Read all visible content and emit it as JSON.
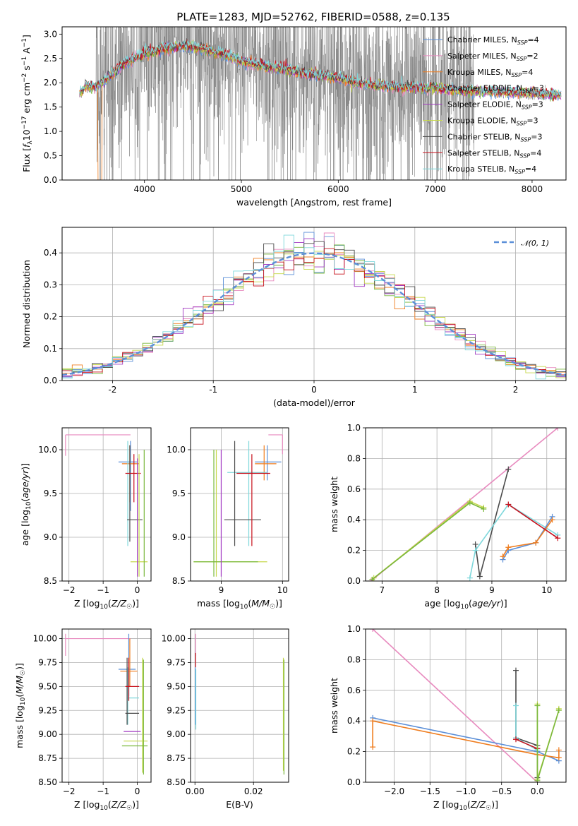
{
  "figure_title": "PLATE=1283, MJD=52762, FIBERID=0588, z=0.135",
  "series_colors": [
    "#5b8fd8",
    "#e88bbf",
    "#ef7d1f",
    "#7ab83c",
    "#a23bc2",
    "#c6d84c",
    "#4a4a4a",
    "#c8101c",
    "#7fd8dc"
  ],
  "chart_data": [
    {
      "id": "spectrum",
      "type": "line",
      "title": "PLATE=1283, MJD=52762, FIBERID=0588, z=0.135",
      "xlabel": "wavelength [Angstrom, rest frame]",
      "ylabel": "Flux [f_λ 10^-17 erg cm^-2 s^-1 A^-1]",
      "xlim": [
        3150,
        8350
      ],
      "ylim": [
        0,
        3.15
      ],
      "xticks": [
        4000,
        5000,
        6000,
        7000,
        8000
      ],
      "yticks": [
        0.0,
        0.5,
        1.0,
        1.5,
        2.0,
        2.5,
        3.0
      ],
      "ytick_labels": [
        "0.0",
        "0.5",
        "1.0",
        "1.5",
        "2.0",
        "2.5",
        "3.0"
      ],
      "grid": false,
      "legend_position": "upper-right",
      "data_color": "#808080",
      "continuum_x": [
        3330,
        3400,
        3500,
        3600,
        3700,
        3800,
        3900,
        4000,
        4200,
        4400,
        4600,
        4800,
        5000,
        5200,
        5400,
        5600,
        5800,
        6000,
        6200,
        6400,
        6600,
        6800,
        7000,
        7200,
        7400,
        7600,
        7800,
        8000,
        8300
      ],
      "continuum_y": [
        1.75,
        1.95,
        1.9,
        2.05,
        2.25,
        2.4,
        2.5,
        2.6,
        2.7,
        2.75,
        2.7,
        2.6,
        2.45,
        2.35,
        2.3,
        2.2,
        2.15,
        2.1,
        2.0,
        1.95,
        1.92,
        1.9,
        1.88,
        1.85,
        1.83,
        1.82,
        1.8,
        1.78,
        1.75
      ],
      "noise_range": [
        3500,
        7400
      ],
      "legend": [
        "Chabrier MILES, N_SSP=4",
        "Salpeter MILES, N_SSP=2",
        "Kroupa MILES, N_SSP=4",
        "Chabrier ELODIE, N_SSP=3",
        "Salpeter ELODIE, N_SSP=3",
        "Kroupa ELODIE, N_SSP=3",
        "Chabrier STELIB, N_SSP=3",
        "Salpeter STELIB, N_SSP=4",
        "Kroupa STELIB, N_SSP=4"
      ]
    },
    {
      "id": "residuals",
      "type": "line",
      "xlabel": "(data-model)/error",
      "ylabel": "Normed distribution",
      "xlim": [
        -2.5,
        2.5
      ],
      "ylim": [
        0,
        0.48
      ],
      "xticks": [
        -2,
        -1,
        0,
        1,
        2
      ],
      "yticks": [
        0.0,
        0.1,
        0.2,
        0.3,
        0.4
      ],
      "ytick_labels": [
        "0.0",
        "0.1",
        "0.2",
        "0.3",
        "0.4"
      ],
      "grid": true,
      "legend_position": "upper-right",
      "legend": [
        "𝒩(0, 1)"
      ],
      "gaussian_color": "#5b8fd8",
      "bin_width": 0.1
    },
    {
      "id": "age-vs-z",
      "type": "scatter",
      "xlabel": "Z [log10(Z/Z☉)]",
      "ylabel": "age  [log10(age/yr)]",
      "xlim": [
        -2.2,
        0.4
      ],
      "ylim": [
        8.5,
        10.25
      ],
      "xticks": [
        -2,
        -1,
        0
      ],
      "xtick_labels": [
        "−2",
        "−1",
        "0"
      ],
      "yticks": [
        8.5,
        9.0,
        9.5,
        10.0
      ],
      "ytick_labels": [
        "8.5",
        "9.0",
        "9.5",
        "10.0"
      ],
      "grid": true,
      "segments": [
        {
          "c": 1,
          "x1": -2.1,
          "x2": -0.2,
          "y1": 10.17,
          "y2": 10.17
        },
        {
          "c": 1,
          "x1": -2.1,
          "x2": -2.1,
          "y1": 9.93,
          "y2": 10.17
        },
        {
          "c": 0,
          "x1": -0.55,
          "x2": 0.0,
          "y1": 9.86,
          "y2": 9.86
        },
        {
          "c": 0,
          "x1": -0.2,
          "x2": -0.2,
          "y1": 9.3,
          "y2": 10.1
        },
        {
          "c": 2,
          "x1": -0.45,
          "x2": 0.05,
          "y1": 9.84,
          "y2": 9.84
        },
        {
          "c": 2,
          "x1": -0.22,
          "x2": -0.22,
          "y1": 9.4,
          "y2": 10.05
        },
        {
          "c": 8,
          "x1": -0.28,
          "x2": -0.28,
          "y1": 8.9,
          "y2": 10.1
        },
        {
          "c": 6,
          "x1": -0.22,
          "x2": -0.22,
          "y1": 8.95,
          "y2": 10.05
        },
        {
          "c": 6,
          "x1": -0.3,
          "x2": 0.15,
          "y1": 9.2,
          "y2": 9.2
        },
        {
          "c": 7,
          "x1": -0.35,
          "x2": 0.1,
          "y1": 9.73,
          "y2": 9.73
        },
        {
          "c": 7,
          "x1": -0.1,
          "x2": -0.1,
          "y1": 9.4,
          "y2": 9.95
        },
        {
          "c": 5,
          "x1": -0.2,
          "x2": 0.3,
          "y1": 8.72,
          "y2": 8.72
        },
        {
          "c": 5,
          "x1": 0.05,
          "x2": 0.05,
          "y1": 8.55,
          "y2": 9.95
        },
        {
          "c": 3,
          "x1": 0.2,
          "x2": 0.2,
          "y1": 8.55,
          "y2": 10.0
        },
        {
          "c": 4,
          "x1": 0.0,
          "x2": 0.0,
          "y1": 8.55,
          "y2": 9.9
        }
      ]
    },
    {
      "id": "age-vs-mass",
      "type": "scatter",
      "xlabel": "mass [log10(M/M☉)]",
      "ylabel": "",
      "xlim": [
        8.5,
        10.1
      ],
      "ylim": [
        8.5,
        10.25
      ],
      "xticks": [
        9,
        10
      ],
      "xtick_labels": [
        "9",
        "10"
      ],
      "yticks": [
        8.5,
        9.0,
        9.5,
        10.0
      ],
      "ytick_labels": [
        "8.5",
        "9.0",
        "9.5",
        "10.0"
      ],
      "grid": true,
      "segments": [
        {
          "c": 1,
          "x1": 9.77,
          "x2": 10.0,
          "y1": 10.17,
          "y2": 10.17
        },
        {
          "c": 1,
          "x1": 10.0,
          "x2": 10.0,
          "y1": 9.95,
          "y2": 10.17
        },
        {
          "c": 0,
          "x1": 9.55,
          "x2": 9.98,
          "y1": 9.86,
          "y2": 9.86
        },
        {
          "c": 0,
          "x1": 9.75,
          "x2": 9.75,
          "y1": 9.65,
          "y2": 10.05
        },
        {
          "c": 2,
          "x1": 9.55,
          "x2": 9.9,
          "y1": 9.84,
          "y2": 9.84
        },
        {
          "c": 2,
          "x1": 9.7,
          "x2": 9.7,
          "y1": 9.65,
          "y2": 10.05
        },
        {
          "c": 8,
          "x1": 9.1,
          "x2": 9.75,
          "y1": 9.74,
          "y2": 9.74
        },
        {
          "c": 8,
          "x1": 9.45,
          "x2": 9.45,
          "y1": 8.9,
          "y2": 10.1
        },
        {
          "c": 6,
          "x1": 9.05,
          "x2": 9.65,
          "y1": 9.2,
          "y2": 9.2
        },
        {
          "c": 6,
          "x1": 9.22,
          "x2": 9.22,
          "y1": 8.9,
          "y2": 10.1
        },
        {
          "c": 7,
          "x1": 9.25,
          "x2": 9.8,
          "y1": 9.73,
          "y2": 9.73
        },
        {
          "c": 7,
          "x1": 9.5,
          "x2": 9.5,
          "y1": 8.9,
          "y2": 9.95
        },
        {
          "c": 5,
          "x1": 8.55,
          "x2": 9.75,
          "y1": 8.72,
          "y2": 8.72
        },
        {
          "c": 5,
          "x1": 8.92,
          "x2": 8.92,
          "y1": 8.55,
          "y2": 10.0
        },
        {
          "c": 3,
          "x1": 8.55,
          "x2": 9.6,
          "y1": 8.72,
          "y2": 8.72
        },
        {
          "c": 3,
          "x1": 8.88,
          "x2": 8.88,
          "y1": 8.55,
          "y2": 10.0
        },
        {
          "c": 4,
          "x1": 9.0,
          "x2": 9.0,
          "y1": 8.55,
          "y2": 10.0
        }
      ]
    },
    {
      "id": "weight-vs-age",
      "type": "line",
      "xlabel": "age  [log10(age/yr)]",
      "ylabel": "mass weight",
      "xlim": [
        6.7,
        10.35
      ],
      "ylim": [
        0,
        1.0
      ],
      "xticks": [
        7,
        8,
        9,
        10
      ],
      "xtick_labels": [
        "7",
        "8",
        "9",
        "10"
      ],
      "yticks": [
        0.0,
        0.2,
        0.4,
        0.6,
        0.8,
        1.0
      ],
      "ytick_labels": [
        "0.0",
        "0.2",
        "0.4",
        "0.6",
        "0.8",
        "1.0"
      ],
      "grid": true,
      "series": [
        {
          "c": 1,
          "x": [
            6.8,
            10.2
          ],
          "y": [
            0.0,
            1.0
          ]
        },
        {
          "c": 5,
          "x": [
            6.85,
            8.6,
            8.85
          ],
          "y": [
            0.02,
            0.52,
            0.48
          ]
        },
        {
          "c": 3,
          "x": [
            6.82,
            8.6,
            8.85
          ],
          "y": [
            0.01,
            0.51,
            0.47
          ]
        },
        {
          "c": 6,
          "x": [
            8.7,
            8.78,
            9.3
          ],
          "y": [
            0.24,
            0.03,
            0.73
          ]
        },
        {
          "c": 8,
          "x": [
            8.6,
            8.7,
            9.3,
            10.2
          ],
          "y": [
            0.02,
            0.2,
            0.5,
            0.3
          ]
        },
        {
          "c": 0,
          "x": [
            9.2,
            9.3,
            9.8,
            10.1
          ],
          "y": [
            0.14,
            0.2,
            0.25,
            0.42
          ]
        },
        {
          "c": 2,
          "x": [
            9.2,
            9.3,
            9.8,
            10.1
          ],
          "y": [
            0.16,
            0.22,
            0.25,
            0.4
          ]
        },
        {
          "c": 7,
          "x": [
            9.3,
            10.2
          ],
          "y": [
            0.5,
            0.28
          ]
        }
      ]
    },
    {
      "id": "mass-vs-z",
      "type": "scatter",
      "xlabel": "Z [log10(Z/Z☉)]",
      "ylabel": "mass [log10(M/M☉)]",
      "xlim": [
        -2.2,
        0.4
      ],
      "ylim": [
        8.5,
        10.1
      ],
      "xticks": [
        -2,
        -1,
        0
      ],
      "xtick_labels": [
        "−2",
        "−1",
        "0"
      ],
      "yticks": [
        8.5,
        8.75,
        9.0,
        9.25,
        9.5,
        9.75,
        10.0
      ],
      "ytick_labels": [
        "8.50",
        "8.75",
        "9.00",
        "9.25",
        "9.50",
        "9.75",
        "10.00"
      ],
      "grid": true,
      "segments": [
        {
          "c": 1,
          "x1": -2.1,
          "x2": -0.2,
          "y1": 10.0,
          "y2": 10.0
        },
        {
          "c": 1,
          "x1": -2.1,
          "x2": -2.1,
          "y1": 9.82,
          "y2": 10.05
        },
        {
          "c": 0,
          "x1": -0.55,
          "x2": -0.05,
          "y1": 9.68,
          "y2": 9.68
        },
        {
          "c": 0,
          "x1": -0.25,
          "x2": -0.25,
          "y1": 9.4,
          "y2": 10.05
        },
        {
          "c": 2,
          "x1": -0.5,
          "x2": 0.0,
          "y1": 9.66,
          "y2": 9.66
        },
        {
          "c": 2,
          "x1": -0.22,
          "x2": -0.22,
          "y1": 9.5,
          "y2": 10.0
        },
        {
          "c": 8,
          "x1": -0.3,
          "x2": 0.05,
          "y1": 9.38,
          "y2": 9.38
        },
        {
          "c": 8,
          "x1": -0.28,
          "x2": -0.28,
          "y1": 9.1,
          "y2": 9.7
        },
        {
          "c": 6,
          "x1": -0.35,
          "x2": 0.05,
          "y1": 9.22,
          "y2": 9.22
        },
        {
          "c": 6,
          "x1": -0.3,
          "x2": -0.3,
          "y1": 9.1,
          "y2": 9.8
        },
        {
          "c": 7,
          "x1": -0.35,
          "x2": 0.05,
          "y1": 9.5,
          "y2": 9.5
        },
        {
          "c": 7,
          "x1": -0.25,
          "x2": -0.25,
          "y1": 9.35,
          "y2": 9.8
        },
        {
          "c": 4,
          "x1": -0.4,
          "x2": 0.1,
          "y1": 9.03,
          "y2": 9.03
        },
        {
          "c": 5,
          "x1": -0.4,
          "x2": 0.3,
          "y1": 8.93,
          "y2": 8.93
        },
        {
          "c": 5,
          "x1": 0.15,
          "x2": 0.15,
          "y1": 8.6,
          "y2": 9.8
        },
        {
          "c": 3,
          "x1": -0.45,
          "x2": 0.3,
          "y1": 8.88,
          "y2": 8.88
        },
        {
          "c": 3,
          "x1": 0.18,
          "x2": 0.18,
          "y1": 8.58,
          "y2": 9.78
        }
      ]
    },
    {
      "id": "mass-vs-ebv",
      "type": "scatter",
      "xlabel": "E(B-V)",
      "ylabel": "",
      "xlim": [
        -0.0015,
        0.032
      ],
      "ylim": [
        8.5,
        10.1
      ],
      "xticks": [
        0.0,
        0.02
      ],
      "xtick_labels": [
        "0.00",
        "0.02"
      ],
      "yticks": [
        8.5,
        8.75,
        9.0,
        9.25,
        9.5,
        9.75,
        10.0
      ],
      "ytick_labels": [
        "8.50",
        "8.75",
        "9.00",
        "9.25",
        "9.50",
        "9.75",
        "10.00"
      ],
      "grid": true,
      "segments": [
        {
          "c": 1,
          "x1": 0.0002,
          "x2": 0.0002,
          "y1": 9.82,
          "y2": 10.05
        },
        {
          "c": 7,
          "x1": 0.0002,
          "x2": 0.0002,
          "y1": 9.7,
          "y2": 9.85
        },
        {
          "c": 0,
          "x1": 0.0001,
          "x2": 0.0001,
          "y1": 9.1,
          "y2": 9.7
        },
        {
          "c": 8,
          "x1": 0.0003,
          "x2": 0.0003,
          "y1": 9.05,
          "y2": 9.68
        },
        {
          "c": 5,
          "x1": 0.0302,
          "x2": 0.0302,
          "y1": 8.62,
          "y2": 9.8
        },
        {
          "c": 3,
          "x1": 0.0304,
          "x2": 0.0304,
          "y1": 8.58,
          "y2": 9.78
        }
      ]
    },
    {
      "id": "weight-vs-z",
      "type": "line",
      "xlabel": "Z [log10(Z/Z☉)]",
      "ylabel": "mass weight",
      "xlim": [
        -2.4,
        0.4
      ],
      "ylim": [
        0,
        1.0
      ],
      "xticks": [
        -2.0,
        -1.5,
        -1.0,
        -0.5,
        0.0
      ],
      "xtick_labels": [
        "−2.0",
        "−1.5",
        "−1.0",
        "−0.5",
        "0.0"
      ],
      "yticks": [
        0.0,
        0.2,
        0.4,
        0.6,
        0.8,
        1.0
      ],
      "ytick_labels": [
        "0.0",
        "0.2",
        "0.4",
        "0.6",
        "0.8",
        "1.0"
      ],
      "grid": true,
      "series": [
        {
          "c": 1,
          "x": [
            -2.3,
            0.0
          ],
          "y": [
            1.0,
            0.0
          ]
        },
        {
          "c": 0,
          "x": [
            -2.3,
            0.0,
            0.3
          ],
          "y": [
            0.42,
            0.2,
            0.14
          ]
        },
        {
          "c": 2,
          "x": [
            -2.3,
            -2.3,
            0.0,
            0.3,
            0.3
          ],
          "y": [
            0.23,
            0.4,
            0.18,
            0.16,
            0.21
          ]
        },
        {
          "c": 6,
          "x": [
            -0.3,
            -0.3,
            0.0,
            0.0
          ],
          "y": [
            0.73,
            0.29,
            0.24,
            0.03
          ]
        },
        {
          "c": 8,
          "x": [
            -0.3,
            -0.3,
            0.0
          ],
          "y": [
            0.5,
            0.29,
            0.21
          ]
        },
        {
          "c": 7,
          "x": [
            -0.3,
            0.0
          ],
          "y": [
            0.28,
            0.22
          ]
        },
        {
          "c": 5,
          "x": [
            0.0,
            0.0,
            0.3,
            0.3
          ],
          "y": [
            0.51,
            0.02,
            0.47,
            0.48
          ]
        },
        {
          "c": 3,
          "x": [
            0.0,
            0.0,
            0.3
          ],
          "y": [
            0.5,
            0.01,
            0.47
          ]
        }
      ]
    }
  ]
}
